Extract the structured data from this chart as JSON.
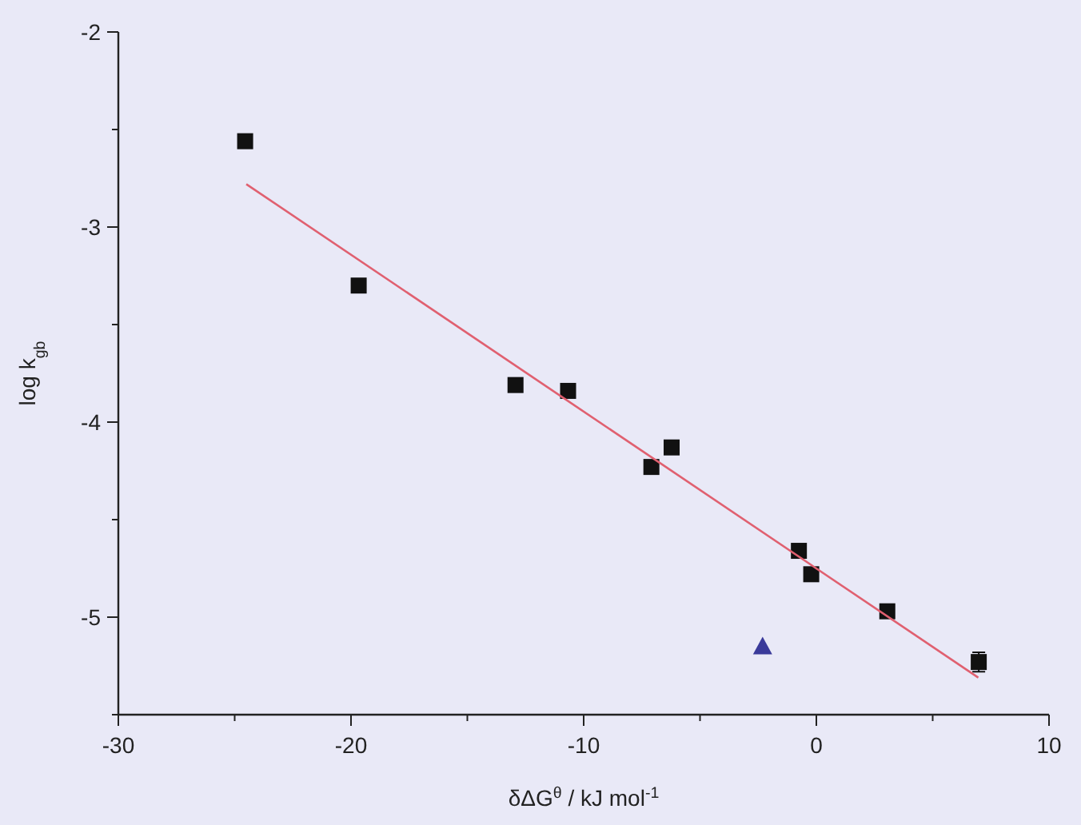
{
  "chart_data": {
    "type": "scatter",
    "xlabel": "δΔG$^{θ}$ / kJ mol$^{-1}$",
    "ylabel": "log k$_{gb}$",
    "xlim": [
      -30,
      10
    ],
    "ylim": [
      -5.5,
      -2
    ],
    "xticks": [
      -30,
      {
        "value": -25,
        "label": null
      },
      -20,
      {
        "value": -15,
        "label": null
      },
      -10,
      {
        "value": -5,
        "label": null
      },
      0,
      {
        "value": 5,
        "label": null
      },
      10
    ],
    "yticks": [
      {
        "value": -5.5,
        "label": null
      },
      -5,
      {
        "value": -4.5,
        "label": null
      },
      -4,
      {
        "value": -3.5,
        "label": null
      },
      -3,
      {
        "value": -2.5,
        "label": null
      },
      -2
    ],
    "grid": false,
    "series": [
      {
        "color": "#111111",
        "marker": "square",
        "x": [
          -24.55,
          -19.67,
          -12.93,
          -10.67,
          -7.09,
          -6.22,
          -0.75,
          -0.22,
          3.05,
          6.98
        ],
        "values": [
          -2.56,
          -3.3,
          -3.81,
          -3.84,
          -4.23,
          -4.13,
          -4.66,
          -4.78,
          -4.97,
          -5.23
        ],
        "errors": [
          null,
          null,
          null,
          null,
          null,
          null,
          null,
          null,
          null,
          0.05
        ]
      },
      {
        "color": "#3a3a9a",
        "marker": "triangle",
        "x": [
          -2.31
        ],
        "values": [
          -5.15
        ]
      },
      {
        "type": "line",
        "color": "#e06070",
        "marker": "none",
        "line_style": "solid",
        "x": [
          -24.5,
          6.96
        ],
        "values": [
          -2.78,
          -5.31
        ]
      }
    ]
  }
}
